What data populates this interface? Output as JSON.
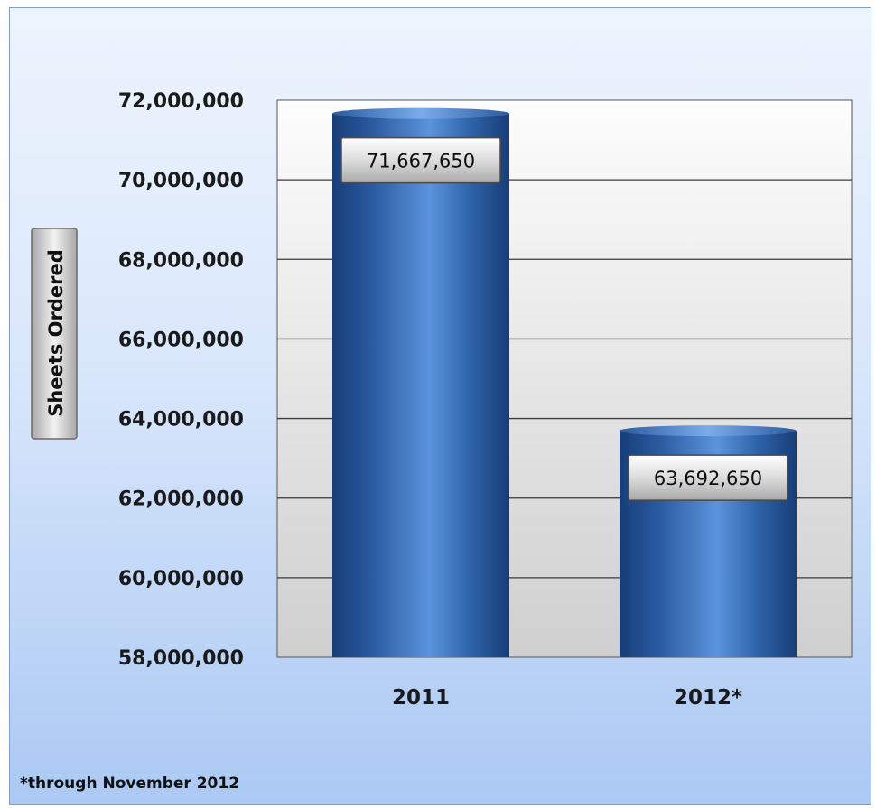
{
  "chart_data": {
    "type": "bar",
    "title": "",
    "xlabel": "",
    "ylabel": "Sheets Ordered",
    "categories": [
      "2011",
      "2012*"
    ],
    "values": [
      71667650,
      63692650
    ],
    "value_labels": [
      "71,667,650",
      "63,692,650"
    ],
    "ylim": [
      58000000,
      72000000
    ],
    "yticks": [
      58000000,
      60000000,
      62000000,
      64000000,
      66000000,
      68000000,
      70000000,
      72000000
    ],
    "ytick_labels": [
      "58,000,000",
      "60,000,000",
      "62,000,000",
      "64,000,000",
      "66,000,000",
      "68,000,000",
      "70,000,000",
      "72,000,000"
    ],
    "grid": true,
    "footnote": "*through November 2012",
    "colors": {
      "bar": "#2e63a8",
      "bar_dark": "#173d78",
      "bar_light": "#5b93dc",
      "gridline": "#000000"
    }
  }
}
